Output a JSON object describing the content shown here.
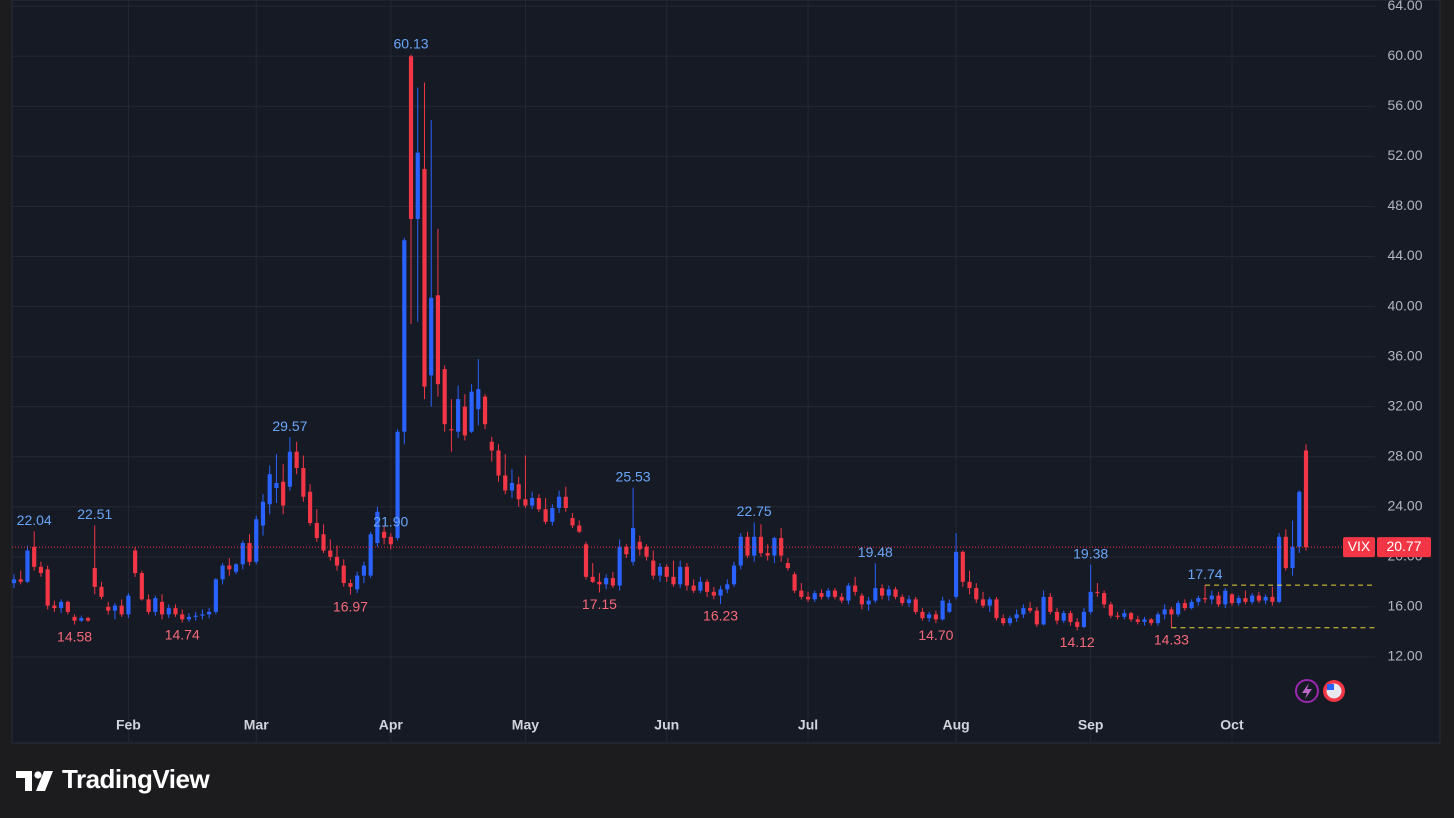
{
  "chart_data": {
    "type": "candlestick",
    "symbol": "VIX",
    "brand": "TradingView",
    "up_color": "#2962ff",
    "down_color": "#f23645",
    "grid": true,
    "ylim": [
      5.2,
      64.5
    ],
    "yticks": [
      {
        "value": 12,
        "label": "12.00"
      },
      {
        "value": 16,
        "label": "16.00"
      },
      {
        "value": 20,
        "label": "20.00"
      },
      {
        "value": 24,
        "label": "24.00"
      },
      {
        "value": 28,
        "label": "28.00"
      },
      {
        "value": 32,
        "label": "32.00"
      },
      {
        "value": 36,
        "label": "36.00"
      },
      {
        "value": 40,
        "label": "40.00"
      },
      {
        "value": 44,
        "label": "44.00"
      },
      {
        "value": 48,
        "label": "48.00"
      },
      {
        "value": 52,
        "label": "52.00"
      },
      {
        "value": 56,
        "label": "56.00"
      },
      {
        "value": 60,
        "label": "60.00"
      },
      {
        "value": 64,
        "label": "64.00"
      }
    ],
    "categories": [
      null,
      null,
      null,
      null,
      null,
      null,
      null,
      null,
      null,
      null,
      null,
      null,
      null,
      null,
      null,
      null,
      null,
      "Feb",
      null,
      null,
      null,
      null,
      null,
      null,
      null,
      null,
      null,
      null,
      null,
      null,
      null,
      null,
      null,
      null,
      null,
      null,
      "Mar",
      null,
      null,
      null,
      null,
      null,
      null,
      null,
      null,
      null,
      null,
      null,
      null,
      null,
      null,
      null,
      null,
      null,
      null,
      null,
      "Apr",
      null,
      null,
      null,
      null,
      null,
      null,
      null,
      null,
      null,
      null,
      null,
      null,
      null,
      null,
      null,
      null,
      null,
      null,
      null,
      "May",
      null,
      null,
      null,
      null,
      null,
      null,
      null,
      null,
      null,
      null,
      null,
      null,
      null,
      null,
      null,
      null,
      null,
      null,
      null,
      null,
      "Jun",
      null,
      null,
      null,
      null,
      null,
      null,
      null,
      null,
      null,
      null,
      null,
      null,
      null,
      null,
      null,
      null,
      null,
      null,
      null,
      null,
      "Jul",
      null,
      null,
      null,
      null,
      null,
      null,
      null,
      null,
      null,
      null,
      null,
      null,
      null,
      null,
      null,
      null,
      null,
      null,
      null,
      null,
      null,
      "Aug",
      null,
      null,
      null,
      null,
      null,
      null,
      null,
      null,
      null,
      null,
      null,
      null,
      null,
      null,
      null,
      null,
      null,
      null,
      null,
      "Sep",
      null,
      null,
      null,
      null,
      null,
      null,
      null,
      null,
      null,
      null,
      null,
      null,
      null,
      null,
      null,
      null,
      null,
      null,
      null,
      null,
      "Oct",
      null,
      null,
      null,
      null,
      null,
      null,
      null,
      null,
      null,
      null,
      null
    ],
    "candles": [
      [
        17.9,
        18.6,
        17.5,
        18.2
      ],
      [
        18.2,
        18.9,
        17.8,
        18.0
      ],
      [
        18.0,
        20.9,
        17.9,
        20.5
      ],
      [
        20.8,
        22.04,
        18.9,
        19.2
      ],
      [
        19.2,
        19.6,
        18.4,
        18.7
      ],
      [
        19.0,
        19.3,
        15.8,
        16.1
      ],
      [
        16.1,
        16.5,
        15.6,
        15.9
      ],
      [
        15.9,
        16.6,
        15.5,
        16.4
      ],
      [
        16.4,
        16.5,
        15.4,
        15.6
      ],
      [
        15.2,
        15.4,
        14.58,
        14.9
      ],
      [
        14.9,
        15.3,
        14.8,
        15.1
      ],
      [
        15.1,
        15.2,
        14.8,
        14.9
      ],
      [
        19.1,
        22.51,
        17.0,
        17.6
      ],
      [
        17.6,
        18.0,
        16.6,
        16.8
      ],
      [
        16.0,
        16.4,
        15.4,
        15.7
      ],
      [
        15.7,
        16.3,
        15.0,
        16.1
      ],
      [
        16.1,
        16.6,
        15.2,
        15.4
      ],
      [
        15.4,
        17.1,
        15.1,
        16.9
      ],
      [
        20.5,
        20.8,
        18.4,
        18.7
      ],
      [
        18.7,
        18.9,
        16.5,
        16.6
      ],
      [
        16.6,
        17.0,
        15.4,
        15.6
      ],
      [
        15.6,
        16.9,
        15.3,
        16.7
      ],
      [
        16.4,
        17.0,
        15.0,
        15.4
      ],
      [
        15.4,
        16.2,
        15.1,
        15.9
      ],
      [
        15.9,
        16.2,
        15.2,
        15.4
      ],
      [
        15.4,
        15.8,
        14.74,
        15.0
      ],
      [
        15.0,
        15.5,
        14.8,
        15.2
      ],
      [
        15.2,
        15.6,
        14.9,
        15.3
      ],
      [
        15.3,
        15.8,
        15.0,
        15.4
      ],
      [
        15.4,
        15.9,
        15.1,
        15.6
      ],
      [
        15.6,
        18.3,
        15.4,
        18.2
      ],
      [
        18.2,
        19.5,
        17.8,
        19.3
      ],
      [
        19.3,
        19.9,
        18.5,
        19.0
      ],
      [
        18.8,
        19.5,
        18.6,
        19.4
      ],
      [
        19.4,
        21.3,
        19.0,
        21.1
      ],
      [
        21.1,
        21.8,
        19.3,
        19.6
      ],
      [
        19.6,
        23.3,
        19.4,
        23.0
      ],
      [
        22.5,
        25.0,
        21.7,
        24.4
      ],
      [
        24.2,
        27.3,
        23.4,
        26.6
      ],
      [
        25.5,
        28.2,
        24.3,
        25.9
      ],
      [
        26.0,
        27.4,
        23.4,
        24.1
      ],
      [
        25.6,
        29.57,
        25.3,
        28.4
      ],
      [
        28.4,
        29.2,
        26.6,
        27.1
      ],
      [
        27.1,
        28.1,
        24.4,
        24.8
      ],
      [
        25.2,
        25.8,
        22.5,
        22.7
      ],
      [
        22.7,
        23.8,
        21.2,
        21.5
      ],
      [
        21.8,
        22.6,
        20.3,
        20.5
      ],
      [
        20.5,
        21.4,
        19.7,
        20.0
      ],
      [
        20.0,
        20.9,
        18.9,
        19.3
      ],
      [
        19.3,
        19.8,
        17.6,
        17.9
      ],
      [
        17.9,
        18.2,
        16.97,
        17.6
      ],
      [
        17.4,
        18.8,
        17.1,
        18.5
      ],
      [
        18.5,
        19.6,
        17.9,
        19.3
      ],
      [
        18.5,
        22.0,
        18.3,
        21.8
      ],
      [
        21.1,
        24.0,
        20.8,
        23.6
      ],
      [
        22.0,
        22.4,
        21.0,
        21.5
      ],
      [
        21.6,
        21.9,
        20.6,
        21.0
      ],
      [
        21.5,
        30.2,
        21.3,
        30.0
      ],
      [
        30.0,
        45.5,
        29.0,
        45.3
      ],
      [
        60.0,
        60.13,
        38.6,
        47.0
      ],
      [
        47.0,
        57.5,
        38.8,
        52.3
      ],
      [
        51.0,
        57.9,
        32.6,
        33.6
      ],
      [
        34.5,
        54.9,
        32.0,
        40.7
      ],
      [
        40.9,
        46.2,
        32.8,
        33.8
      ],
      [
        35.0,
        35.3,
        30.0,
        30.6
      ],
      [
        30.2,
        32.6,
        28.4,
        30.1
      ],
      [
        30.0,
        33.7,
        29.5,
        32.6
      ],
      [
        32.0,
        33.0,
        29.3,
        29.7
      ],
      [
        30.0,
        33.8,
        29.9,
        33.2
      ],
      [
        31.8,
        35.8,
        30.5,
        33.4
      ],
      [
        32.8,
        33.0,
        30.2,
        30.6
      ],
      [
        29.2,
        29.6,
        27.6,
        28.5
      ],
      [
        28.5,
        29.0,
        26.0,
        26.5
      ],
      [
        26.5,
        28.2,
        25.0,
        25.3
      ],
      [
        25.3,
        27.0,
        24.7,
        25.9
      ],
      [
        25.8,
        26.4,
        24.0,
        24.6
      ],
      [
        24.6,
        28.1,
        23.9,
        24.1
      ],
      [
        24.1,
        25.2,
        23.8,
        24.7
      ],
      [
        24.7,
        25.0,
        23.6,
        23.8
      ],
      [
        23.8,
        24.7,
        22.6,
        22.8
      ],
      [
        22.8,
        24.2,
        22.5,
        23.9
      ],
      [
        23.9,
        25.3,
        23.5,
        24.8
      ],
      [
        24.8,
        25.6,
        23.6,
        23.9
      ],
      [
        23.1,
        23.5,
        22.3,
        22.5
      ],
      [
        22.5,
        22.9,
        21.9,
        22.0
      ],
      [
        21.0,
        21.2,
        18.2,
        18.4
      ],
      [
        18.4,
        19.5,
        17.9,
        18.0
      ],
      [
        18.0,
        18.7,
        17.15,
        17.8
      ],
      [
        17.8,
        18.6,
        17.4,
        18.3
      ],
      [
        18.3,
        18.8,
        17.5,
        17.7
      ],
      [
        17.7,
        21.4,
        17.3,
        20.8
      ],
      [
        20.8,
        21.0,
        19.9,
        20.2
      ],
      [
        19.6,
        25.53,
        19.3,
        22.3
      ],
      [
        21.2,
        21.7,
        20.1,
        20.6
      ],
      [
        20.8,
        21.0,
        19.7,
        20.0
      ],
      [
        19.7,
        20.5,
        18.2,
        18.5
      ],
      [
        18.5,
        19.5,
        18.0,
        19.2
      ],
      [
        19.2,
        19.4,
        18.0,
        18.4
      ],
      [
        18.4,
        19.7,
        17.6,
        17.8
      ],
      [
        17.8,
        19.7,
        17.5,
        19.2
      ],
      [
        19.2,
        19.5,
        17.3,
        17.7
      ],
      [
        17.7,
        18.2,
        17.1,
        17.3
      ],
      [
        17.3,
        18.4,
        17.1,
        18.0
      ],
      [
        18.0,
        18.2,
        16.8,
        17.2
      ],
      [
        17.2,
        17.6,
        16.6,
        16.9
      ],
      [
        16.9,
        17.7,
        16.23,
        17.4
      ],
      [
        17.4,
        18.2,
        17.1,
        17.8
      ],
      [
        17.8,
        19.6,
        17.6,
        19.3
      ],
      [
        19.3,
        21.9,
        19.0,
        21.6
      ],
      [
        21.6,
        22.0,
        19.9,
        20.1
      ],
      [
        20.1,
        22.75,
        19.6,
        21.6
      ],
      [
        21.6,
        22.6,
        20.0,
        20.3
      ],
      [
        20.3,
        21.0,
        19.7,
        20.1
      ],
      [
        20.1,
        21.6,
        19.5,
        21.5
      ],
      [
        21.5,
        22.3,
        19.6,
        20.1
      ],
      [
        19.5,
        19.9,
        18.9,
        19.1
      ],
      [
        18.6,
        18.8,
        17.1,
        17.3
      ],
      [
        17.3,
        17.9,
        16.6,
        16.8
      ],
      [
        16.8,
        17.2,
        16.4,
        16.6
      ],
      [
        16.6,
        17.3,
        16.4,
        17.1
      ],
      [
        17.1,
        17.4,
        16.6,
        16.8
      ],
      [
        16.8,
        17.5,
        16.6,
        17.3
      ],
      [
        17.3,
        17.5,
        16.6,
        16.8
      ],
      [
        16.8,
        17.1,
        16.3,
        16.5
      ],
      [
        16.5,
        17.9,
        16.2,
        17.7
      ],
      [
        17.7,
        18.4,
        16.9,
        17.2
      ],
      [
        16.9,
        17.1,
        15.8,
        16.2
      ],
      [
        16.2,
        16.8,
        15.7,
        16.5
      ],
      [
        16.5,
        19.48,
        16.3,
        17.5
      ],
      [
        17.5,
        17.8,
        16.6,
        16.9
      ],
      [
        16.9,
        17.7,
        16.5,
        17.4
      ],
      [
        17.4,
        17.6,
        16.6,
        16.8
      ],
      [
        16.8,
        17.0,
        16.1,
        16.3
      ],
      [
        16.3,
        16.9,
        16.0,
        16.6
      ],
      [
        16.6,
        16.8,
        15.4,
        15.6
      ],
      [
        15.6,
        15.9,
        14.9,
        15.1
      ],
      [
        15.1,
        15.6,
        14.8,
        15.4
      ],
      [
        15.4,
        15.7,
        14.7,
        15.0
      ],
      [
        15.0,
        16.8,
        14.9,
        16.5
      ],
      [
        15.6,
        16.6,
        15.5,
        16.3
      ],
      [
        16.8,
        21.9,
        16.6,
        20.4
      ],
      [
        20.4,
        20.5,
        17.6,
        18.0
      ],
      [
        18.0,
        18.9,
        17.0,
        17.5
      ],
      [
        17.5,
        17.9,
        16.3,
        16.6
      ],
      [
        16.6,
        17.2,
        15.9,
        16.1
      ],
      [
        16.1,
        16.8,
        15.6,
        16.6
      ],
      [
        16.6,
        16.8,
        14.9,
        15.1
      ],
      [
        15.1,
        15.4,
        14.5,
        14.7
      ],
      [
        14.7,
        15.3,
        14.5,
        15.1
      ],
      [
        15.1,
        15.8,
        14.8,
        15.4
      ],
      [
        15.4,
        16.2,
        15.1,
        15.9
      ],
      [
        15.9,
        16.4,
        15.5,
        15.7
      ],
      [
        15.7,
        16.0,
        14.4,
        14.6
      ],
      [
        14.6,
        17.3,
        14.5,
        16.8
      ],
      [
        16.8,
        17.1,
        15.4,
        15.6
      ],
      [
        15.6,
        15.9,
        14.6,
        14.9
      ],
      [
        14.9,
        15.7,
        14.7,
        15.5
      ],
      [
        15.5,
        15.7,
        14.5,
        14.8
      ],
      [
        14.8,
        15.1,
        14.12,
        14.4
      ],
      [
        14.4,
        15.9,
        14.3,
        15.6
      ],
      [
        15.6,
        19.38,
        15.4,
        17.2
      ],
      [
        17.2,
        17.9,
        16.8,
        17.1
      ],
      [
        17.1,
        17.3,
        15.9,
        16.2
      ],
      [
        16.2,
        16.4,
        15.1,
        15.3
      ],
      [
        15.3,
        15.6,
        15.0,
        15.2
      ],
      [
        15.2,
        15.8,
        15.0,
        15.5
      ],
      [
        15.5,
        15.6,
        14.8,
        15.0
      ],
      [
        15.0,
        15.3,
        14.6,
        14.8
      ],
      [
        14.8,
        15.2,
        14.5,
        15.0
      ],
      [
        15.0,
        15.1,
        14.5,
        14.7
      ],
      [
        14.7,
        15.6,
        14.5,
        15.4
      ],
      [
        15.4,
        16.2,
        15.0,
        15.8
      ],
      [
        15.8,
        16.0,
        14.33,
        15.4
      ],
      [
        15.4,
        16.5,
        15.2,
        16.3
      ],
      [
        16.3,
        16.6,
        15.7,
        15.9
      ],
      [
        15.9,
        16.6,
        15.8,
        16.4
      ],
      [
        16.4,
        16.9,
        16.1,
        16.7
      ],
      [
        16.7,
        17.74,
        16.3,
        16.6
      ],
      [
        16.6,
        17.3,
        16.2,
        16.9
      ],
      [
        16.9,
        17.2,
        16.0,
        16.2
      ],
      [
        16.2,
        17.5,
        15.9,
        17.3
      ],
      [
        17.0,
        17.1,
        16.1,
        16.3
      ],
      [
        16.3,
        16.9,
        16.1,
        16.7
      ],
      [
        16.7,
        17.3,
        16.2,
        16.4
      ],
      [
        16.4,
        17.1,
        16.2,
        16.9
      ],
      [
        16.9,
        17.2,
        16.3,
        16.5
      ],
      [
        16.5,
        17.0,
        16.2,
        16.8
      ],
      [
        16.8,
        17.6,
        16.1,
        16.4
      ],
      [
        16.4,
        21.9,
        16.3,
        21.6
      ],
      [
        21.6,
        22.2,
        18.9,
        19.1
      ],
      [
        19.1,
        22.9,
        18.5,
        20.8
      ],
      [
        20.8,
        25.3,
        20.3,
        25.2
      ],
      [
        28.5,
        29.0,
        20.5,
        20.77
      ]
    ],
    "annotations": [
      {
        "value": 22.04,
        "position": "above"
      },
      {
        "value": 22.51,
        "position": "above"
      },
      {
        "value": 14.58,
        "position": "below"
      },
      {
        "value": 14.74,
        "position": "below"
      },
      {
        "value": 29.57,
        "position": "above"
      },
      {
        "value": 16.97,
        "position": "below"
      },
      {
        "value": 60.13,
        "position": "above"
      },
      {
        "value": 25.53,
        "position": "above"
      },
      {
        "value": 17.15,
        "position": "below"
      },
      {
        "value": 16.23,
        "position": "below"
      },
      {
        "value": 22.75,
        "position": "above"
      },
      {
        "value": 19.48,
        "position": "above"
      },
      {
        "value": 14.7,
        "label": "14.70",
        "position": "below"
      },
      {
        "value": 21.9,
        "label": "21.90",
        "position": "above"
      },
      {
        "value": 14.12,
        "position": "below"
      },
      {
        "value": 19.38,
        "position": "above"
      },
      {
        "value": 14.33,
        "position": "below",
        "dashed": true
      },
      {
        "value": 17.74,
        "position": "above",
        "dashed": true
      }
    ]
  }
}
